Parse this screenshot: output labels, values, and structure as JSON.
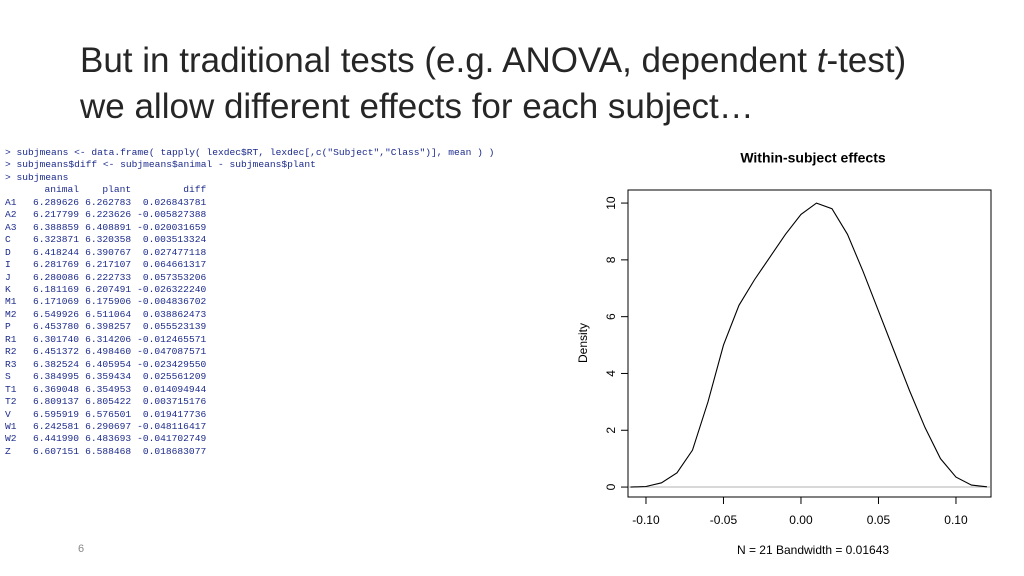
{
  "slide": {
    "title_parts": [
      "But in traditional tests (e.g. ANOVA, dependent ",
      "t",
      "-test) we allow different effects for each subject…"
    ],
    "page_number": "6"
  },
  "console": {
    "commands": [
      "> subjmeans <- data.frame( tapply( lexdec$RT, lexdec[,c(\"Subject\",\"Class\")], mean ) )",
      "> subjmeans$diff <- subjmeans$animal - subjmeans$plant",
      "> subjmeans"
    ],
    "table": {
      "header": [
        "animal",
        "plant",
        "diff"
      ],
      "rows": [
        [
          "A1",
          "6.289626",
          "6.262783",
          "0.026843781"
        ],
        [
          "A2",
          "6.217799",
          "6.223626",
          "-0.005827388"
        ],
        [
          "A3",
          "6.388859",
          "6.408891",
          "-0.020031659"
        ],
        [
          "C",
          "6.323871",
          "6.320358",
          "0.003513324"
        ],
        [
          "D",
          "6.418244",
          "6.390767",
          "0.027477118"
        ],
        [
          "I",
          "6.281769",
          "6.217107",
          "0.064661317"
        ],
        [
          "J",
          "6.280086",
          "6.222733",
          "0.057353206"
        ],
        [
          "K",
          "6.181169",
          "6.207491",
          "-0.026322240"
        ],
        [
          "M1",
          "6.171069",
          "6.175906",
          "-0.004836702"
        ],
        [
          "M2",
          "6.549926",
          "6.511064",
          "0.038862473"
        ],
        [
          "P",
          "6.453780",
          "6.398257",
          "0.055523139"
        ],
        [
          "R1",
          "6.301740",
          "6.314206",
          "-0.012465571"
        ],
        [
          "R2",
          "6.451372",
          "6.498460",
          "-0.047087571"
        ],
        [
          "R3",
          "6.382524",
          "6.405954",
          "-0.023429550"
        ],
        [
          "S",
          "6.384995",
          "6.359434",
          "0.025561209"
        ],
        [
          "T1",
          "6.369048",
          "6.354953",
          "0.014094944"
        ],
        [
          "T2",
          "6.809137",
          "6.805422",
          "0.003715176"
        ],
        [
          "V",
          "6.595919",
          "6.576501",
          "0.019417736"
        ],
        [
          "W1",
          "6.242581",
          "6.290697",
          "-0.048116417"
        ],
        [
          "W2",
          "6.441990",
          "6.483693",
          "-0.041702749"
        ],
        [
          "Z",
          "6.607151",
          "6.588468",
          "0.018683077"
        ]
      ]
    }
  },
  "chart_data": {
    "type": "line",
    "title": "Within-subject effects",
    "y_label": "Density",
    "x_label": "N = 21   Bandwidth = 0.01643",
    "color": "#000000",
    "x": [
      -0.11,
      -0.1,
      -0.09,
      -0.08,
      -0.07,
      -0.06,
      -0.05,
      -0.04,
      -0.03,
      -0.02,
      -0.01,
      0.0,
      0.01,
      0.02,
      0.03,
      0.04,
      0.05,
      0.06,
      0.07,
      0.08,
      0.09,
      0.1,
      0.11,
      0.12
    ],
    "values": [
      0.0,
      0.02,
      0.15,
      0.5,
      1.3,
      3.0,
      5.0,
      6.4,
      7.3,
      8.1,
      8.9,
      9.6,
      10.0,
      9.8,
      8.9,
      7.6,
      6.2,
      4.8,
      3.4,
      2.1,
      1.0,
      0.35,
      0.07,
      0.01
    ],
    "xlim": [
      -0.1116,
      0.1226
    ],
    "ylim": [
      -0.35,
      10.46
    ],
    "xticks": [
      {
        "value": -0.1,
        "label": "-0.10"
      },
      -0.05,
      {
        "value": 0,
        "label": "0.00"
      },
      0.05,
      {
        "value": 0.1,
        "label": "0.10"
      }
    ],
    "yticks": [
      0,
      2,
      4,
      6,
      8,
      10
    ]
  }
}
